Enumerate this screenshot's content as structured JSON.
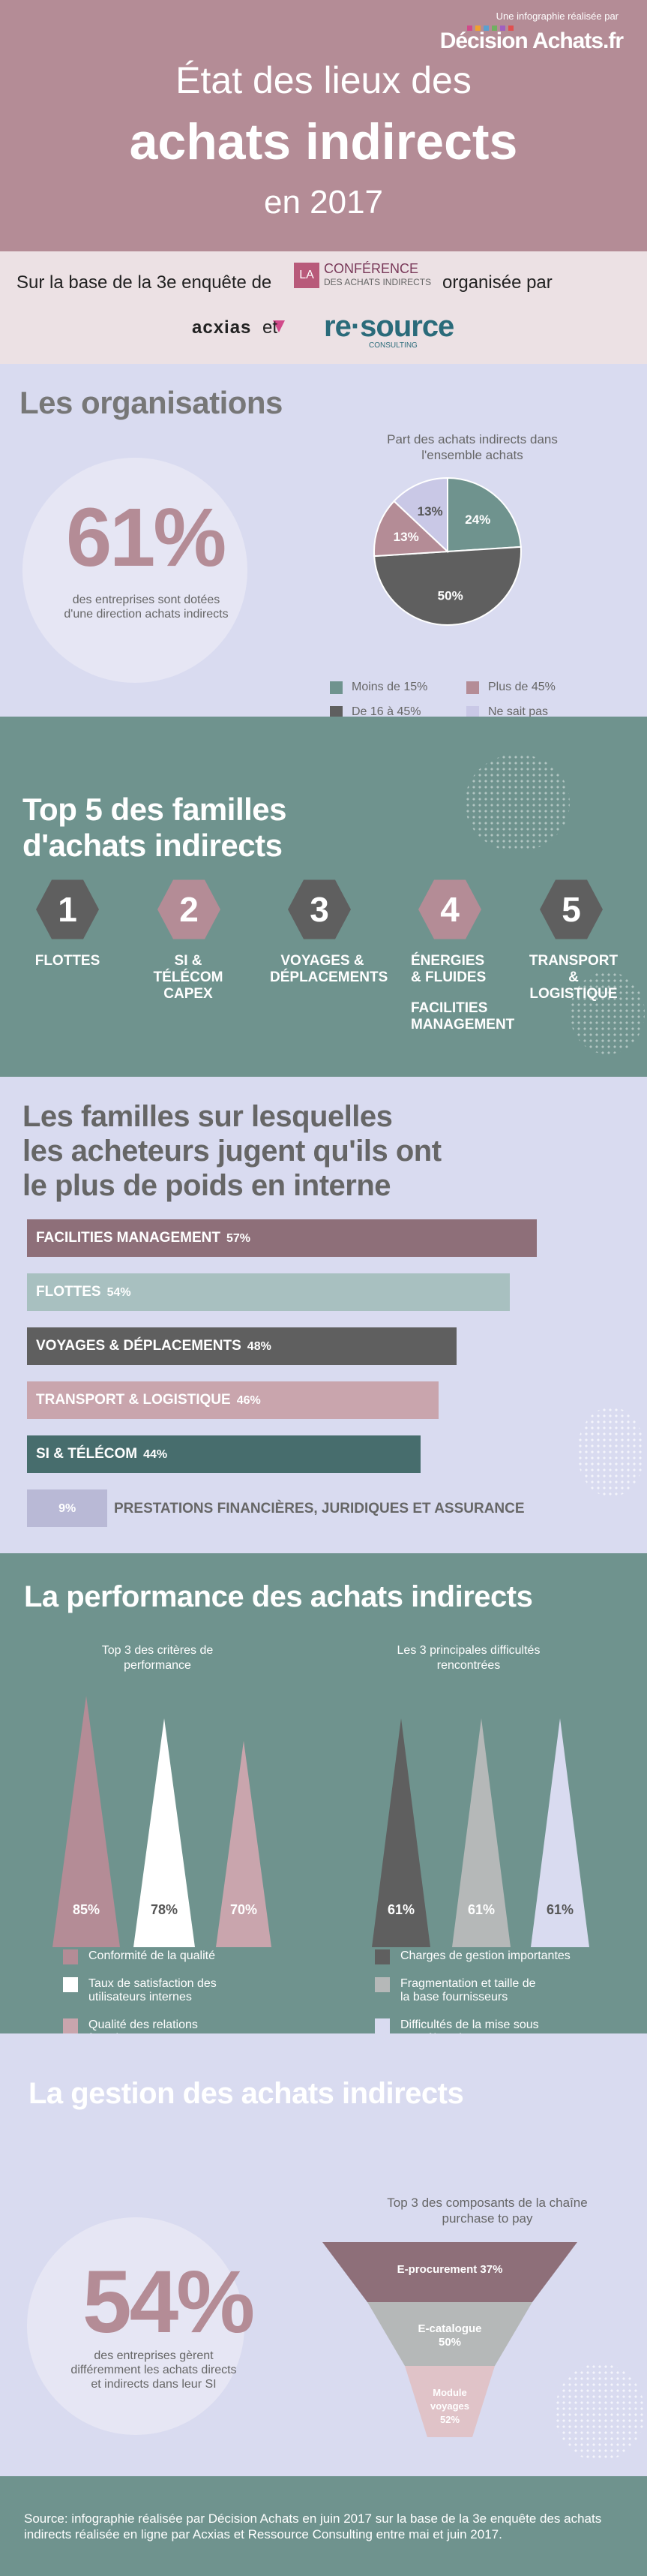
{
  "header": {
    "brand_small": "Une infographie réalisée par",
    "brand_main": "Décision Achats.fr",
    "title_line1": "État des lieux des",
    "title_line2": "achats indirects",
    "title_line3": "en 2017"
  },
  "partners": {
    "line_start": "Sur la base de la 3e enquête de",
    "conf_box": "LA",
    "conf_name": "CONFÉRENCE",
    "conf_sub": "DES ACHATS INDIRECTS",
    "line_end": "organisée par",
    "partner1": "acxias",
    "and": "et",
    "partner2": "re·source",
    "partner2_sub": "CONSULTING"
  },
  "organisations": {
    "title": "Les organisations",
    "stat": "61%",
    "stat_desc": "des entreprises sont dotées d'une direction achats indirects",
    "pie_title": "Part des achats indirects dans l'ensemble achats",
    "pie_slices": [
      {
        "label": "24%",
        "value": 24,
        "color": "#6f938e"
      },
      {
        "label": "50%",
        "value": 50,
        "color": "#5f5f5f"
      },
      {
        "label": "13%",
        "value": 13,
        "color": "#b48c96"
      },
      {
        "label": "13%",
        "value": 13,
        "color": "#c9c8e6"
      }
    ],
    "legend": [
      {
        "label": "Moins de 15%",
        "color": "#6f938e"
      },
      {
        "label": "Plus de 45%",
        "color": "#b48c96"
      },
      {
        "label": "De 16 à 45%",
        "color": "#5f5f5f"
      },
      {
        "label": "Ne sait pas",
        "color": "#c9c8e6"
      }
    ]
  },
  "top5": {
    "title_line1": "Top 5 des familles",
    "title_line2": "d'achats indirects",
    "items": [
      {
        "rank": "1",
        "label": "FLOTTES",
        "color": "#5f5f5f"
      },
      {
        "rank": "2",
        "label": "SI & TÉLÉCOM CAPEX",
        "color": "#b48c96"
      },
      {
        "rank": "3",
        "label": "VOYAGES & DÉPLACEMENTS",
        "color": "#5f5f5f"
      },
      {
        "rank": "4",
        "label": "ÉNERGIES & FLUIDES",
        "label2": "FACILITIES MANAGEMENT",
        "color": "#b48c96"
      },
      {
        "rank": "5",
        "label": "TRANSPORT & LOGISTIQUE",
        "color": "#5f5f5f"
      }
    ]
  },
  "weight": {
    "title_line1": "Les familles sur lesquelles",
    "title_line2": "les acheteurs jugent qu'ils ont",
    "title_line3": "le plus de poids en interne",
    "bars": [
      {
        "label": "FACILITIES MANAGEMENT",
        "pct": "57%",
        "value": 57,
        "color": "#8e6f79"
      },
      {
        "label": "FLOTTES",
        "pct": "54%",
        "value": 54,
        "color": "#a8c0c0"
      },
      {
        "label": "VOYAGES & DÉPLACEMENTS",
        "pct": "48%",
        "value": 48,
        "color": "#5f5f5f"
      },
      {
        "label": "TRANSPORT & LOGISTIQUE",
        "pct": "46%",
        "value": 46,
        "color": "#c9a5ad"
      },
      {
        "label": "SI & TÉLÉCOM",
        "pct": "44%",
        "value": 44,
        "color": "#476d6d"
      },
      {
        "label": "PRESTATIONS FINANCIÈRES, JURIDIQUES ET ASSURANCE",
        "pct": "9%",
        "value": 9,
        "color": "#b9b9d6"
      }
    ]
  },
  "performance": {
    "title": "La performance des achats indirects",
    "left_title": "Top 3 des critères de performance",
    "right_title": "Les 3 principales difficultés rencontrées",
    "criteria": [
      {
        "value": "85%",
        "label": "Conformité de la qualité",
        "color": "#b48c96"
      },
      {
        "value": "78%",
        "label": "Taux de satisfaction des utilisateurs internes",
        "color": "#ffffff"
      },
      {
        "value": "70%",
        "label": "Qualité des relations fournisseurs",
        "color": "#c9a5ad"
      }
    ],
    "difficulties": [
      {
        "value": "61%",
        "label": "Charges de gestion importantes",
        "color": "#5f5f5f"
      },
      {
        "value": "61%",
        "label": "Fragmentation et taille de la base fournisseurs",
        "color": "#b5b8b8"
      },
      {
        "value": "61%",
        "label": "Difficultés de la mise sous contrôle achat",
        "color": "#d9dbf0"
      }
    ]
  },
  "gestion": {
    "title": "La gestion des achats indirects",
    "stat": "54%",
    "stat_desc": "des entreprises gèrent différemment les achats directs et indirects dans leur SI",
    "funnel_title": "Top 3 des composants de la chaîne purchase to pay",
    "funnel": [
      {
        "label": "E-procurement 37%",
        "color": "#8e6f79"
      },
      {
        "label": "E-catalogue 50%",
        "color": "#b5b8b8"
      },
      {
        "label": "Module voyages 52%",
        "color": "#e0c3c8"
      }
    ]
  },
  "footer": {
    "text": "Source: infographie réalisée par Décision Achats en juin 2017 sur la base de la 3e enquête des achats indirects réalisée en ligne par Acxias et Ressource Consulting entre mai et juin 2017."
  }
}
